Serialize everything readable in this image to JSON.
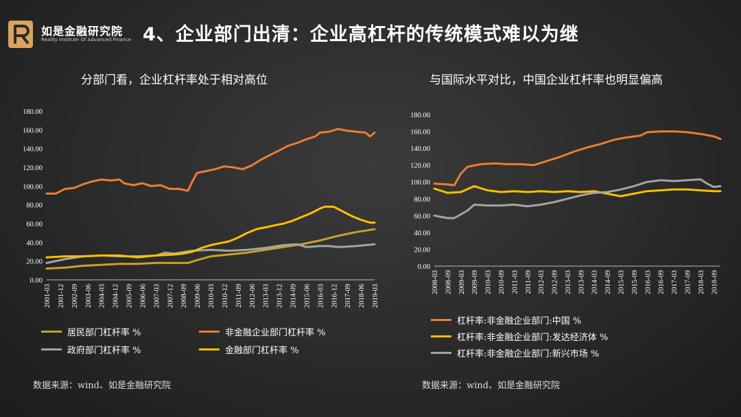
{
  "header": {
    "logo_cn": "如是金融研究院",
    "logo_en": "Reality Institute Of Advanced Finance",
    "title": "4、企业部门出清：企业高杠杆的传统模式难以为继"
  },
  "colors": {
    "gold_dark": "#c9a227",
    "orange": "#ed7d31",
    "gray": "#a5a5a5",
    "yellow": "#ffc000",
    "logo_gold": "#d9a35f"
  },
  "left": {
    "title": "分部门看，企业杠杆率处于相对高位",
    "source": "数据来源：wind、如是金融研究院",
    "legend": [
      {
        "label": "居民部门杠杆率 %",
        "color": "#c9a227"
      },
      {
        "label": "非金融企业部门杠杆率 %",
        "color": "#ed7d31"
      },
      {
        "label": "政府部门杠杆率 %",
        "color": "#a5a5a5"
      },
      {
        "label": "金融部门杠杆率 %",
        "color": "#ffc000"
      }
    ]
  },
  "right": {
    "title": "与国际水平对比，中国企业杠杆率也明显偏高",
    "source": "数据来源：wind、如是金融研究院",
    "legend": [
      {
        "label": "杠杆率:非金融企业部门:中国 %",
        "color": "#ed7d31"
      },
      {
        "label": "杠杆率:非金融企业部门:发达经济体 %",
        "color": "#ffc000"
      },
      {
        "label": "杠杆率:非金融企业部门:新兴市场 %",
        "color": "#a5a5a5"
      }
    ]
  },
  "chart_data": [
    {
      "type": "line",
      "title": "分部门看，企业杠杆率处于相对高位",
      "ylim": [
        0,
        180
      ],
      "y_ticks": [
        "0.00",
        "20.00",
        "40.00",
        "60.00",
        "80.00",
        "100.00",
        "120.00",
        "140.00",
        "160.00",
        "180.00"
      ],
      "x_range": [
        "2001-03",
        "2019-03"
      ],
      "x_tick_labels": [
        "2001-03",
        "2001-12",
        "2002-09",
        "2003-06",
        "2004-03",
        "2004-12",
        "2005-09",
        "2006-06",
        "2007-03",
        "2007-12",
        "2008-09",
        "2009-06",
        "2010-03",
        "2010-12",
        "2011-09",
        "2012-06",
        "2013-03",
        "2013-12",
        "2014-09",
        "2015-06",
        "2016-03",
        "2016-12",
        "2017-09",
        "2018-06",
        "2019-03"
      ],
      "series": [
        {
          "name": "居民部门杠杆率 %",
          "color": "#c9a227",
          "points": [
            [
              2001.0,
              12
            ],
            [
              2002.0,
              13
            ],
            [
              2003.0,
              15
            ],
            [
              2004.0,
              16
            ],
            [
              2005.0,
              17
            ],
            [
              2006.0,
              17
            ],
            [
              2007.0,
              18
            ],
            [
              2008.0,
              18
            ],
            [
              2008.75,
              18
            ],
            [
              2009.25,
              21
            ],
            [
              2010.0,
              25
            ],
            [
              2011.0,
              27
            ],
            [
              2012.0,
              29
            ],
            [
              2013.0,
              32
            ],
            [
              2014.0,
              35
            ],
            [
              2015.0,
              38
            ],
            [
              2016.0,
              42
            ],
            [
              2017.0,
              47
            ],
            [
              2018.0,
              51
            ],
            [
              2019.0,
              54
            ]
          ]
        },
        {
          "name": "非金融企业部门杠杆率 %",
          "color": "#ed7d31",
          "points": [
            [
              2001.0,
              92
            ],
            [
              2001.5,
              92
            ],
            [
              2002.0,
              97
            ],
            [
              2002.5,
              98
            ],
            [
              2003.0,
              102
            ],
            [
              2003.5,
              105
            ],
            [
              2004.0,
              107
            ],
            [
              2004.5,
              106
            ],
            [
              2005.0,
              107
            ],
            [
              2005.25,
              103
            ],
            [
              2005.75,
              101
            ],
            [
              2006.25,
              103
            ],
            [
              2006.75,
              100
            ],
            [
              2007.25,
              101
            ],
            [
              2007.75,
              97
            ],
            [
              2008.25,
              97
            ],
            [
              2008.75,
              95
            ],
            [
              2009.0,
              105
            ],
            [
              2009.25,
              114
            ],
            [
              2009.75,
              116
            ],
            [
              2010.25,
              118
            ],
            [
              2010.75,
              121
            ],
            [
              2011.25,
              120
            ],
            [
              2011.75,
              118
            ],
            [
              2012.25,
              122
            ],
            [
              2012.75,
              128
            ],
            [
              2013.25,
              133
            ],
            [
              2013.75,
              138
            ],
            [
              2014.25,
              143
            ],
            [
              2014.75,
              146
            ],
            [
              2015.25,
              150
            ],
            [
              2015.75,
              153
            ],
            [
              2016.0,
              157
            ],
            [
              2016.5,
              158
            ],
            [
              2017.0,
              161
            ],
            [
              2017.5,
              159
            ],
            [
              2018.0,
              158
            ],
            [
              2018.5,
              157
            ],
            [
              2018.75,
              153
            ],
            [
              2019.0,
              157
            ]
          ]
        },
        {
          "name": "政府部门杠杆率 %",
          "color": "#a5a5a5",
          "points": [
            [
              2001.0,
              18
            ],
            [
              2002.0,
              22
            ],
            [
              2003.0,
              25
            ],
            [
              2004.0,
              26
            ],
            [
              2005.0,
              25
            ],
            [
              2006.0,
              25
            ],
            [
              2007.0,
              26
            ],
            [
              2007.5,
              29
            ],
            [
              2008.0,
              28
            ],
            [
              2009.0,
              31
            ],
            [
              2010.0,
              32
            ],
            [
              2011.0,
              31
            ],
            [
              2012.0,
              32
            ],
            [
              2013.0,
              34
            ],
            [
              2014.0,
              37
            ],
            [
              2014.75,
              38
            ],
            [
              2015.25,
              35
            ],
            [
              2016.0,
              36
            ],
            [
              2016.5,
              36
            ],
            [
              2017.0,
              35
            ],
            [
              2018.0,
              36
            ],
            [
              2019.0,
              38
            ]
          ]
        },
        {
          "name": "金融部门杠杆率 %",
          "color": "#ffc000",
          "points": [
            [
              2001.0,
              24
            ],
            [
              2002.0,
              25
            ],
            [
              2003.0,
              25
            ],
            [
              2004.0,
              26
            ],
            [
              2005.0,
              26
            ],
            [
              2006.0,
              24
            ],
            [
              2007.0,
              26
            ],
            [
              2008.0,
              27
            ],
            [
              2008.5,
              28
            ],
            [
              2009.0,
              30
            ],
            [
              2009.5,
              34
            ],
            [
              2010.0,
              37
            ],
            [
              2010.5,
              39
            ],
            [
              2011.0,
              41
            ],
            [
              2011.5,
              45
            ],
            [
              2012.0,
              50
            ],
            [
              2012.5,
              54
            ],
            [
              2013.0,
              56
            ],
            [
              2013.5,
              58
            ],
            [
              2014.0,
              60
            ],
            [
              2014.5,
              63
            ],
            [
              2015.0,
              67
            ],
            [
              2015.5,
              71
            ],
            [
              2016.0,
              76
            ],
            [
              2016.25,
              78
            ],
            [
              2016.75,
              78
            ],
            [
              2017.25,
              73
            ],
            [
              2017.75,
              68
            ],
            [
              2018.25,
              64
            ],
            [
              2018.75,
              61
            ],
            [
              2019.0,
              61
            ]
          ]
        }
      ]
    },
    {
      "type": "line",
      "title": "与国际水平对比，中国企业杠杆率也明显偏高",
      "ylim": [
        0,
        180
      ],
      "y_ticks": [
        "0.00",
        "20.00",
        "40.00",
        "60.00",
        "80.00",
        "100.00",
        "120.00",
        "140.00",
        "160.00",
        "180.00"
      ],
      "x_range": [
        "2008-03",
        "2018-12"
      ],
      "x_tick_labels": [
        "2008-03",
        "2008-09",
        "2009-03",
        "2009-09",
        "2010-03",
        "2010-09",
        "2011-03",
        "2011-09",
        "2012-03",
        "2012-09",
        "2013-03",
        "2013-09",
        "2014-03",
        "2014-09",
        "2015-03",
        "2015-09",
        "2016-03",
        "2016-09",
        "2017-03",
        "2017-09",
        "2018-03",
        "2018-09"
      ],
      "series": [
        {
          "name": "杠杆率:非金融企业部门:中国 %",
          "color": "#ed7d31",
          "points": [
            [
              2008.0,
              98
            ],
            [
              2008.5,
              97
            ],
            [
              2008.75,
              96
            ],
            [
              2009.0,
              110
            ],
            [
              2009.25,
              118
            ],
            [
              2009.75,
              121
            ],
            [
              2010.25,
              122
            ],
            [
              2010.75,
              121
            ],
            [
              2011.25,
              121
            ],
            [
              2011.75,
              120
            ],
            [
              2012.25,
              125
            ],
            [
              2012.75,
              130
            ],
            [
              2013.25,
              136
            ],
            [
              2013.75,
              141
            ],
            [
              2014.25,
              145
            ],
            [
              2014.75,
              150
            ],
            [
              2015.25,
              153
            ],
            [
              2015.75,
              155
            ],
            [
              2016.0,
              159
            ],
            [
              2016.5,
              160
            ],
            [
              2017.0,
              160
            ],
            [
              2017.5,
              159
            ],
            [
              2018.0,
              157
            ],
            [
              2018.5,
              154
            ],
            [
              2018.75,
              151
            ]
          ]
        },
        {
          "name": "杠杆率:非金融企业部门:发达经济体 %",
          "color": "#ffc000",
          "points": [
            [
              2008.0,
              92
            ],
            [
              2008.5,
              87
            ],
            [
              2009.0,
              88
            ],
            [
              2009.5,
              95
            ],
            [
              2010.0,
              90
            ],
            [
              2010.5,
              88
            ],
            [
              2011.0,
              89
            ],
            [
              2011.5,
              88
            ],
            [
              2012.0,
              89
            ],
            [
              2012.5,
              88
            ],
            [
              2013.0,
              89
            ],
            [
              2013.5,
              88
            ],
            [
              2014.0,
              89
            ],
            [
              2014.5,
              86
            ],
            [
              2015.0,
              83
            ],
            [
              2015.5,
              86
            ],
            [
              2016.0,
              89
            ],
            [
              2016.5,
              90
            ],
            [
              2017.0,
              91
            ],
            [
              2017.5,
              91
            ],
            [
              2018.0,
              90
            ],
            [
              2018.5,
              89
            ],
            [
              2018.75,
              89
            ]
          ]
        },
        {
          "name": "杠杆率:非金融企业部门:新兴市场 %",
          "color": "#a5a5a5",
          "points": [
            [
              2008.0,
              60
            ],
            [
              2008.5,
              57
            ],
            [
              2008.75,
              57
            ],
            [
              2009.25,
              66
            ],
            [
              2009.5,
              73
            ],
            [
              2010.0,
              72
            ],
            [
              2010.5,
              72
            ],
            [
              2011.0,
              73
            ],
            [
              2011.5,
              71
            ],
            [
              2012.0,
              73
            ],
            [
              2012.5,
              76
            ],
            [
              2013.0,
              80
            ],
            [
              2013.5,
              84
            ],
            [
              2014.0,
              87
            ],
            [
              2014.5,
              88
            ],
            [
              2015.0,
              91
            ],
            [
              2015.5,
              95
            ],
            [
              2016.0,
              100
            ],
            [
              2016.5,
              102
            ],
            [
              2017.0,
              101
            ],
            [
              2017.5,
              102
            ],
            [
              2018.0,
              103
            ],
            [
              2018.25,
              98
            ],
            [
              2018.5,
              94
            ],
            [
              2018.75,
              95
            ]
          ]
        }
      ]
    }
  ]
}
